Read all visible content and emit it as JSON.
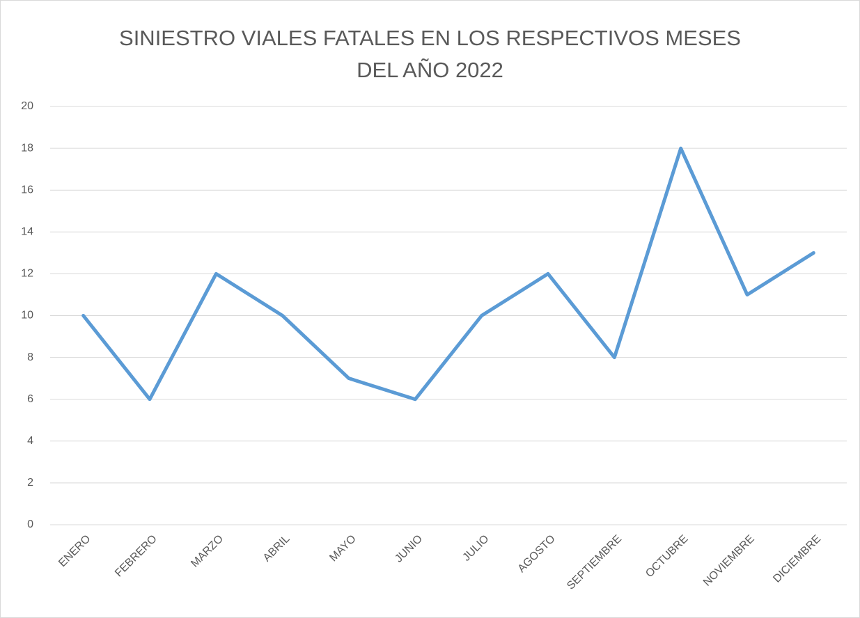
{
  "chart_data": {
    "type": "line",
    "title": "SINIESTRO VIALES FATALES EN LOS RESPECTIVOS MESES DEL AÑO 2022",
    "categories": [
      "ENERO",
      "FEBRERO",
      "MARZO",
      "ABRIL",
      "MAYO",
      "JUNIO",
      "JULIO",
      "AGOSTO",
      "SEPTIEMBRE",
      "OCTUBRE",
      "NOVIEMBRE",
      "DICIEMBRE"
    ],
    "values": [
      10,
      6,
      12,
      10,
      7,
      6,
      10,
      12,
      8,
      18,
      11,
      13
    ],
    "color": "#5b9bd5",
    "ylim": [
      0,
      20
    ],
    "yticks": [
      0,
      2,
      4,
      6,
      8,
      10,
      12,
      14,
      16,
      18,
      20
    ],
    "grid": true
  }
}
